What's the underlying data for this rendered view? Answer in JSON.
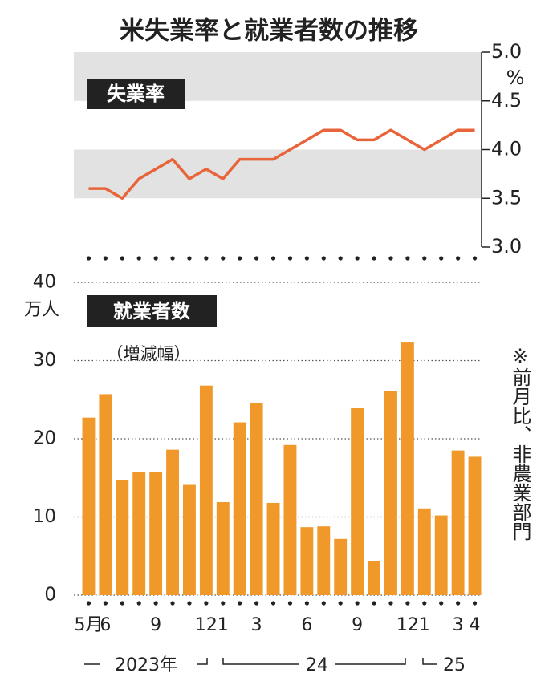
{
  "chart_data": [
    {
      "type": "line",
      "title": "米失業率と就業者数の推移",
      "label": "失業率",
      "y_unit": "%",
      "color": "#e8643a",
      "values": [
        3.6,
        3.6,
        3.5,
        3.7,
        3.8,
        3.9,
        3.7,
        3.8,
        3.7,
        3.9,
        3.9,
        3.9,
        4.0,
        4.1,
        4.2,
        4.2,
        4.1,
        4.1,
        4.2,
        4.1,
        4.0,
        4.1,
        4.2,
        4.2
      ],
      "ylim": [
        3,
        5
      ],
      "yticks": [
        {
          "value": 3,
          "label": "3.0"
        },
        {
          "value": 3.5,
          "label": "3.5"
        },
        {
          "value": 4,
          "label": "4.0"
        },
        {
          "value": 4.5,
          "label": "4.5"
        },
        {
          "value": 5,
          "label": "5.0"
        }
      ],
      "y_axis_side": "right",
      "shading": true
    },
    {
      "type": "bar",
      "label": "就業者数",
      "sublabel": "（増減幅）",
      "y_unit": "万人",
      "note": "※前月比、非農業部門",
      "color": "#f0982a",
      "categories": [
        "5月",
        "6",
        null,
        null,
        "9",
        null,
        null,
        "12",
        "1",
        null,
        "3",
        null,
        null,
        "6",
        null,
        null,
        "9",
        null,
        null,
        "12",
        "1",
        null,
        "3",
        "4"
      ],
      "year_labels": [
        "2023年",
        "24",
        "25"
      ],
      "values": [
        22.7,
        25.7,
        14.7,
        15.7,
        15.7,
        18.6,
        14.1,
        26.8,
        11.9,
        22.1,
        24.6,
        11.8,
        19.2,
        8.7,
        8.8,
        7.2,
        23.9,
        4.4,
        26.1,
        32.3,
        11.1,
        10.2,
        18.5,
        17.7
      ],
      "ylim": [
        0,
        40
      ],
      "yticks": [
        0,
        10,
        20,
        30,
        40
      ],
      "grid": true
    }
  ]
}
